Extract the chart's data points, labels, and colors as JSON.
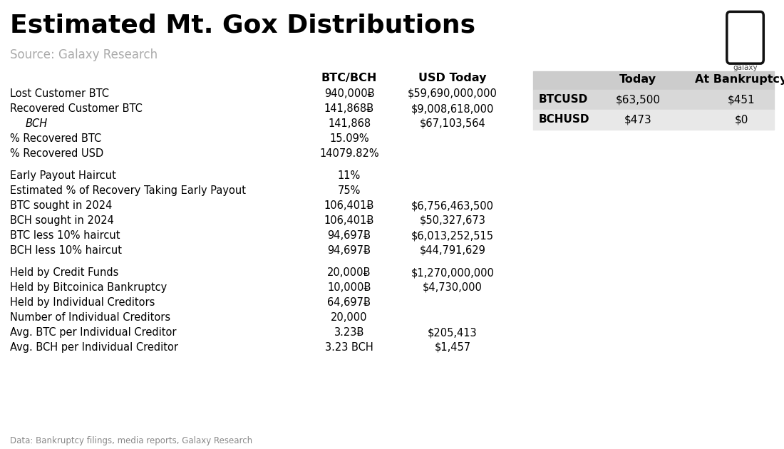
{
  "title": "Estimated Mt. Gox Distributions",
  "source": "Source: Galaxy Research",
  "footnote": "Data: Bankruptcy filings, media reports, Galaxy Research",
  "bg_color": "#ffffff",
  "title_color": "#000000",
  "source_color": "#aaaaaa",
  "footnote_color": "#888888",
  "col_header_btcbch": "BTC/BCH",
  "col_header_usd": "USD Today",
  "col_header_today": "Today",
  "col_header_bankruptcy": "At Bankruptcy",
  "right_table_header_bg": "#cccccc",
  "right_table_row1_bg": "#d8d8d8",
  "right_table_row2_bg": "#e8e8e8",
  "rows": [
    {
      "label": "Lost Customer BTC",
      "btcbch": "940,000Ƀ",
      "usd": "$59,690,000,000",
      "italic": false,
      "indent": false
    },
    {
      "label": "Recovered Customer BTC",
      "btcbch": "141,868Ƀ",
      "usd": "$9,008,618,000",
      "italic": false,
      "indent": false
    },
    {
      "label": "BCH",
      "btcbch": "141,868",
      "usd": "$67,103,564",
      "italic": true,
      "indent": true
    },
    {
      "label": "% Recovered BTC",
      "btcbch": "15.09%",
      "usd": "",
      "italic": false,
      "indent": false
    },
    {
      "label": "% Recovered USD",
      "btcbch": "14079.82%",
      "usd": "",
      "italic": false,
      "indent": false
    },
    {
      "label": "",
      "btcbch": "",
      "usd": "",
      "italic": false,
      "indent": false
    },
    {
      "label": "Early Payout Haircut",
      "btcbch": "11%",
      "usd": "",
      "italic": false,
      "indent": false
    },
    {
      "label": "Estimated % of Recovery Taking Early Payout",
      "btcbch": "75%",
      "usd": "",
      "italic": false,
      "indent": false
    },
    {
      "label": "BTC sought in 2024",
      "btcbch": "106,401Ƀ",
      "usd": "$6,756,463,500",
      "italic": false,
      "indent": false
    },
    {
      "label": "BCH sought in 2024",
      "btcbch": "106,401Ƀ",
      "usd": "$50,327,673",
      "italic": false,
      "indent": false
    },
    {
      "label": "BTC less 10% haircut",
      "btcbch": "94,697Ƀ",
      "usd": "$6,013,252,515",
      "italic": false,
      "indent": false
    },
    {
      "label": "BCH less 10% haircut",
      "btcbch": "94,697Ƀ",
      "usd": "$44,791,629",
      "italic": false,
      "indent": false
    },
    {
      "label": "",
      "btcbch": "",
      "usd": "",
      "italic": false,
      "indent": false
    },
    {
      "label": "Held by Credit Funds",
      "btcbch": "20,000Ƀ",
      "usd": "$1,270,000,000",
      "italic": false,
      "indent": false
    },
    {
      "label": "Held by Bitcoinica Bankruptcy",
      "btcbch": "10,000Ƀ",
      "usd": "$4,730,000",
      "italic": false,
      "indent": false
    },
    {
      "label": "Held by Individual Creditors",
      "btcbch": "64,697Ƀ",
      "usd": "",
      "italic": false,
      "indent": false
    },
    {
      "label": "Number of Individual Creditors",
      "btcbch": "20,000",
      "usd": "",
      "italic": false,
      "indent": false
    },
    {
      "label": "Avg. BTC per Individual Creditor",
      "btcbch": "3.23Ƀ",
      "usd": "$205,413",
      "italic": false,
      "indent": false
    },
    {
      "label": "Avg. BCH per Individual Creditor",
      "btcbch": "3.23 BCH",
      "usd": "$1,457",
      "italic": false,
      "indent": false
    }
  ],
  "right_table": [
    {
      "label": "BTCUSD",
      "today": "$63,500",
      "bankruptcy": "$451"
    },
    {
      "label": "BCHUSD",
      "today": "$473",
      "bankruptcy": "$0"
    }
  ]
}
